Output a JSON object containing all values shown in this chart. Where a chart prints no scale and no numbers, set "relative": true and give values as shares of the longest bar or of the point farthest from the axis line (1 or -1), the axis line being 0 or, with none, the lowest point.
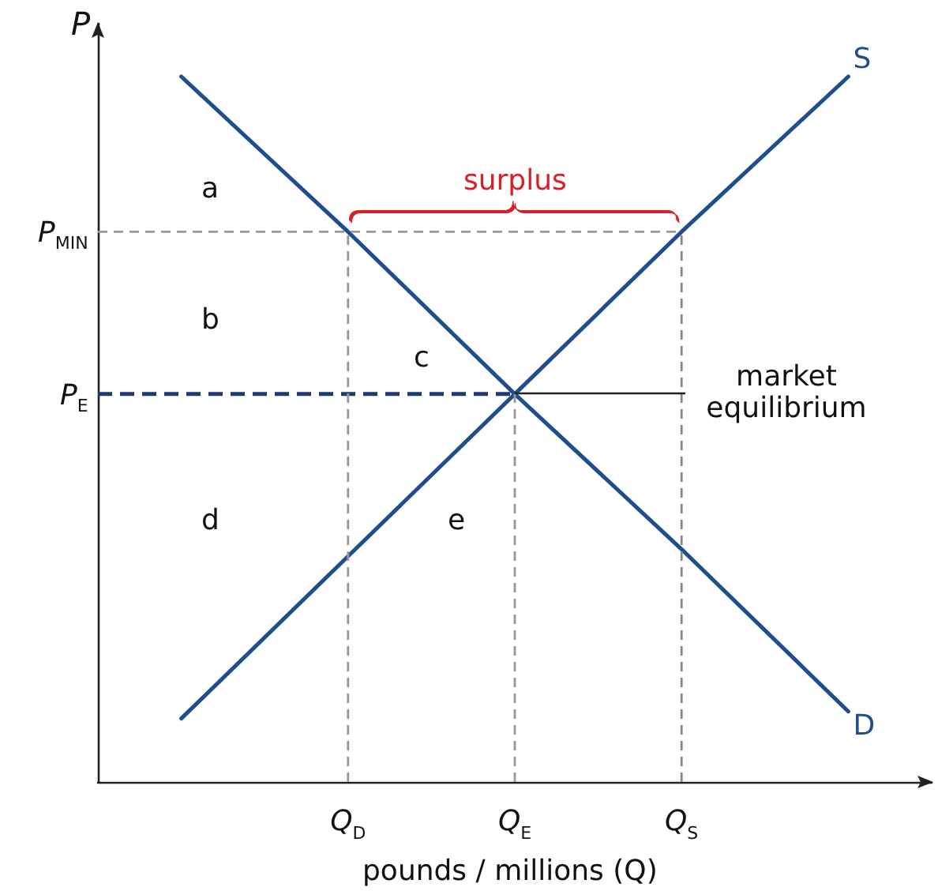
{
  "chart_data": {
    "type": "line",
    "relative": true,
    "ylabel": "P",
    "xlabel": "pounds / millions (Q)",
    "categories": [
      null,
      "Q$_{D}$",
      "Q$_{E}$",
      "Q$_{S}$",
      null
    ],
    "series": [
      {
        "name": "D",
        "color": "#1f4e8c",
        "values": [
          1,
          0.78,
          0.55,
          0.33,
          0.1
        ]
      },
      {
        "name": "S",
        "color": "#1f4e8c",
        "values": [
          0.09,
          0.32,
          0.55,
          0.78,
          1
        ]
      }
    ],
    "ref_lines": [
      {
        "axis": "y",
        "value": 0.78,
        "label": "P$_{MIN}$",
        "color": "#999999",
        "line_style": "dashed"
      },
      {
        "axis": "y",
        "value": 0.55,
        "label": "P$_{E}$",
        "color": "#1f3a6e",
        "line_style": "dashed"
      },
      {
        "axis": "x",
        "value": "Q$_{D}$",
        "color": "#999999",
        "line_style": "dashed"
      },
      {
        "axis": "x",
        "value": "Q$_{E}$",
        "color": "#999999",
        "line_style": "dashed"
      },
      {
        "axis": "x",
        "value": "Q$_{S}$",
        "color": "#888888",
        "line_style": "dashed"
      }
    ],
    "annotations": [
      "a",
      "b",
      "c",
      "d",
      "e",
      "surplus",
      "market equilibrium"
    ]
  }
}
